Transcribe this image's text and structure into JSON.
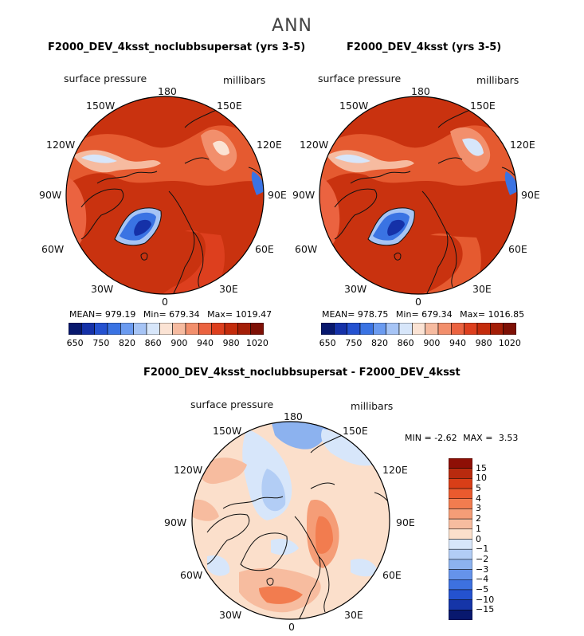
{
  "page_title": "ANN",
  "chart_data": [
    {
      "type": "heatmap",
      "projection": "north polar stereographic",
      "title": "F2000_DEV_4ksst_noclubbsupersat (yrs 3-5)",
      "left_subtitle": "surface pressure",
      "right_subtitle": "millibars",
      "longitude_labels": [
        "180",
        "150E",
        "120E",
        "90E",
        "60E",
        "30E",
        "0",
        "30W",
        "60W",
        "90W",
        "120W",
        "150W"
      ],
      "stats": {
        "mean_label": "MEAN=",
        "mean": "979.19",
        "min_label": "Min=",
        "min": "679.34",
        "max_label": "Max=",
        "max": "1019.47"
      },
      "colorbar_levels": [
        "650",
        "750",
        "820",
        "860",
        "900",
        "940",
        "980",
        "1020"
      ],
      "colorbar_colors": [
        "#08186e",
        "#1531a8",
        "#2451d0",
        "#3a73e3",
        "#6b9bf0",
        "#a6c4f5",
        "#d7e6fa",
        "#fbe3d4",
        "#f6bba0",
        "#f28f6c",
        "#eb6340",
        "#dd3f1e",
        "#c42c0c",
        "#a41e07",
        "#7e1005"
      ]
    },
    {
      "type": "heatmap",
      "projection": "north polar stereographic",
      "title": "F2000_DEV_4ksst (yrs 3-5)",
      "left_subtitle": "surface pressure",
      "right_subtitle": "millibars",
      "longitude_labels": [
        "180",
        "150E",
        "120E",
        "90E",
        "60E",
        "30E",
        "0",
        "30W",
        "60W",
        "90W",
        "120W",
        "150W"
      ],
      "stats": {
        "mean_label": "MEAN=",
        "mean": "978.75",
        "min_label": "Min=",
        "min": "679.34",
        "max_label": "Max=",
        "max": "1016.85"
      },
      "colorbar_levels": [
        "650",
        "750",
        "820",
        "860",
        "900",
        "940",
        "980",
        "1020"
      ],
      "colorbar_colors": [
        "#08186e",
        "#1531a8",
        "#2451d0",
        "#3a73e3",
        "#6b9bf0",
        "#a6c4f5",
        "#d7e6fa",
        "#fbe3d4",
        "#f6bba0",
        "#f28f6c",
        "#eb6340",
        "#dd3f1e",
        "#c42c0c",
        "#a41e07",
        "#7e1005"
      ]
    },
    {
      "type": "heatmap",
      "projection": "north polar stereographic",
      "title": "F2000_DEV_4ksst_noclubbsupersat - F2000_DEV_4ksst",
      "left_subtitle": "surface pressure",
      "right_subtitle": "millibars",
      "longitude_labels": [
        "180",
        "150E",
        "120E",
        "90E",
        "60E",
        "30E",
        "0",
        "30W",
        "60W",
        "90W",
        "120W",
        "150W"
      ],
      "stats": {
        "min_label": "MIN =",
        "min": "-2.62",
        "max_label": "MAX =",
        "max": "3.53"
      },
      "colorbar_levels": [
        "15",
        "10",
        "5",
        "4",
        "3",
        "2",
        "1",
        "0",
        "-1",
        "-2",
        "-3",
        "-4",
        "-5",
        "-10",
        "-15"
      ],
      "colorbar_colors": [
        "#8e0f05",
        "#b82a0e",
        "#d93e17",
        "#ea5a2e",
        "#f27c4f",
        "#f59d77",
        "#f7bc9f",
        "#fbdfcb",
        "#d7e6fa",
        "#b2cdf5",
        "#8cb2ef",
        "#6593ea",
        "#3d71e0",
        "#2452cf",
        "#1535a8",
        "#08186e"
      ]
    }
  ]
}
